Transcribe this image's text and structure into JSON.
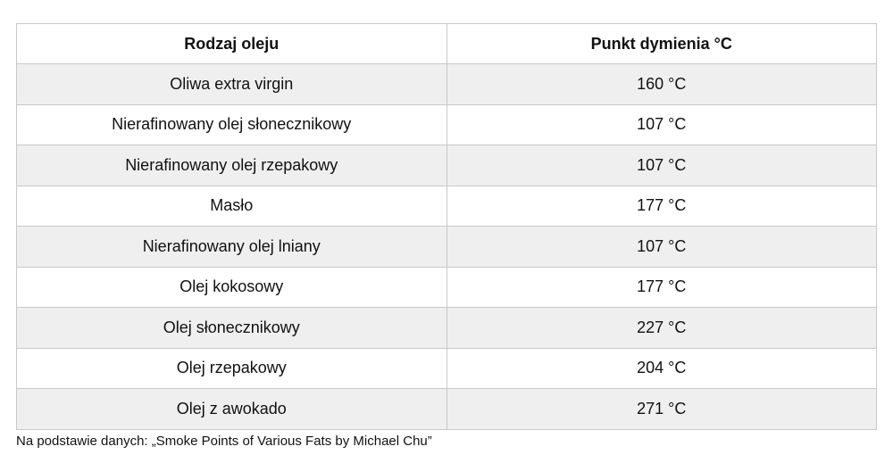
{
  "table": {
    "headers": [
      "Rodzaj oleju",
      "Punkt dymienia °C"
    ],
    "rows": [
      [
        "Oliwa extra virgin",
        "160 °C"
      ],
      [
        "Nierafinowany olej słonecznikowy",
        "107 °C"
      ],
      [
        "Nierafinowany olej rzepakowy",
        "107 °C"
      ],
      [
        "Masło",
        "177 °C"
      ],
      [
        "Nierafinowany olej lniany",
        "107 °C"
      ],
      [
        "Olej kokosowy",
        "177 °C"
      ],
      [
        "Olej słonecznikowy",
        "227 °C"
      ],
      [
        "Olej rzepakowy",
        "204 °C"
      ],
      [
        "Olej z awokado",
        "271 °C"
      ]
    ]
  },
  "caption": "Na podstawie danych: „Smoke Points of Various Fats by Michael Chu”",
  "colors": {
    "stripe": "#efefef",
    "border": "#c8c8c8"
  }
}
